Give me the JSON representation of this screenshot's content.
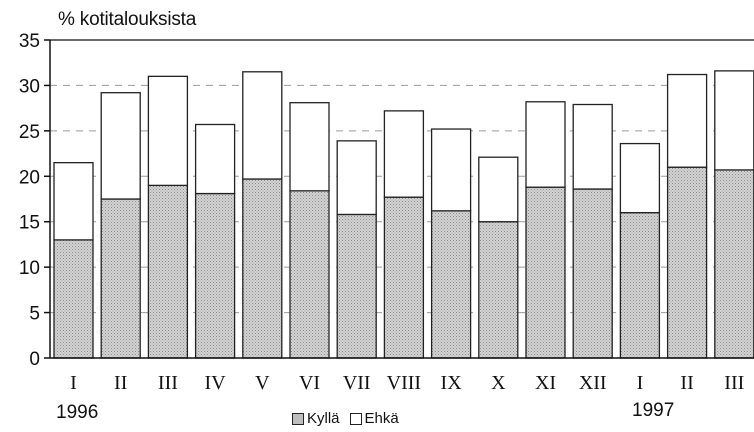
{
  "chart_data": {
    "type": "bar",
    "stacked": true,
    "ylabel": "% kotitalouksista",
    "ylim": [
      0,
      35
    ],
    "yticks": [
      0,
      5,
      10,
      15,
      20,
      25,
      30,
      35
    ],
    "grid": "dashed-horizontal",
    "categories": [
      "I",
      "II",
      "III",
      "IV",
      "V",
      "VI",
      "VII",
      "VIII",
      "IX",
      "X",
      "XI",
      "XII",
      "I",
      "II",
      "III"
    ],
    "year_labels": [
      "1996",
      "1997"
    ],
    "series": [
      {
        "name": "Kyllä",
        "values": [
          13.0,
          17.5,
          19.0,
          18.1,
          19.7,
          18.4,
          15.8,
          17.7,
          16.2,
          15.0,
          18.8,
          18.6,
          16.0,
          21.0,
          20.7
        ]
      },
      {
        "name": "Ehkä",
        "values": [
          8.5,
          11.7,
          12.0,
          7.6,
          11.8,
          9.7,
          8.1,
          9.5,
          9.0,
          7.1,
          9.4,
          9.3,
          7.6,
          10.2,
          10.9
        ]
      }
    ],
    "legend": "bottom-center",
    "colors": {
      "Kyllä": "#c8c8c8",
      "Ehkä": "#ffffff"
    }
  }
}
